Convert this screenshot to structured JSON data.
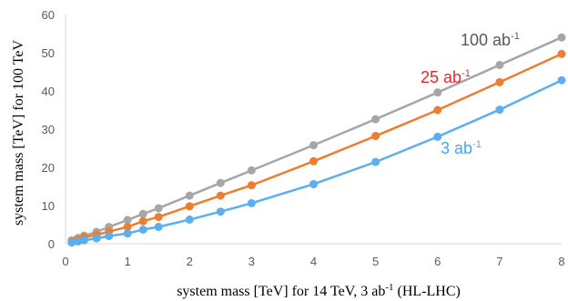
{
  "chart_data": {
    "type": "line",
    "xlabel": {
      "pre": "system mass [TeV]  for 14 TeV, 3 ab",
      "sup": "-1",
      "post": " (HL-LHC)"
    },
    "ylabel": "system mass [TeV] for 100 TeV",
    "xlim": [
      0,
      8
    ],
    "ylim": [
      0,
      60
    ],
    "x_ticks": [
      0,
      1,
      2,
      3,
      4,
      5,
      6,
      7,
      8
    ],
    "y_ticks": [
      0,
      10,
      20,
      30,
      40,
      50,
      60
    ],
    "grid": false,
    "series": [
      {
        "name": "100 ab-1",
        "label_base": "100 ab",
        "label_sup": "-1",
        "color": "#a6a6a6",
        "label_color": "#595959",
        "points": [
          [
            0.1,
            0.9
          ],
          [
            0.2,
            1.5
          ],
          [
            0.3,
            2.1
          ],
          [
            0.5,
            3.1
          ],
          [
            0.7,
            4.4
          ],
          [
            1,
            6.2
          ],
          [
            1.25,
            7.8
          ],
          [
            1.5,
            9.3
          ],
          [
            2,
            12.6
          ],
          [
            2.5,
            15.9
          ],
          [
            3,
            19.2
          ],
          [
            4,
            25.8
          ],
          [
            5,
            32.6
          ],
          [
            6,
            39.6
          ],
          [
            7,
            46.8
          ],
          [
            8,
            54.0
          ]
        ]
      },
      {
        "name": "25 ab-1",
        "label_base": "25 ab",
        "label_sup": "-1",
        "color": "#ed7d31",
        "label_color": "#e8272b",
        "points": [
          [
            0.1,
            0.5
          ],
          [
            0.2,
            1.1
          ],
          [
            0.3,
            1.7
          ],
          [
            0.5,
            2.3
          ],
          [
            0.7,
            3.2
          ],
          [
            1,
            4.4
          ],
          [
            1.25,
            5.9
          ],
          [
            1.5,
            7.0
          ],
          [
            2,
            9.8
          ],
          [
            2.5,
            12.6
          ],
          [
            3,
            15.3
          ],
          [
            4,
            21.6
          ],
          [
            5,
            28.2
          ],
          [
            6,
            35.0
          ],
          [
            7,
            42.3
          ],
          [
            8,
            49.7
          ]
        ]
      },
      {
        "name": "3 ab-1",
        "label_base": "3 ab",
        "label_sup": "-1",
        "color": "#5baef0",
        "label_color": "#4aa3ef",
        "points": [
          [
            0.1,
            0.3
          ],
          [
            0.2,
            0.6
          ],
          [
            0.3,
            0.9
          ],
          [
            0.5,
            1.4
          ],
          [
            0.7,
            2.0
          ],
          [
            1,
            2.7
          ],
          [
            1.25,
            3.7
          ],
          [
            1.5,
            4.4
          ],
          [
            2,
            6.3
          ],
          [
            2.5,
            8.4
          ],
          [
            3,
            10.6
          ],
          [
            4,
            15.6
          ],
          [
            5,
            21.4
          ],
          [
            6,
            28.0
          ],
          [
            7,
            35.1
          ],
          [
            8,
            42.8
          ]
        ]
      }
    ]
  }
}
